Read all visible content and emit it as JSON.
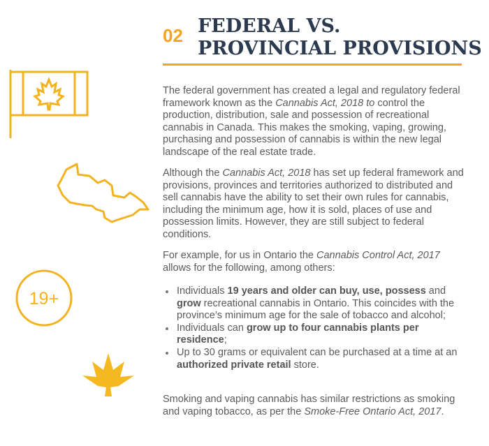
{
  "header": {
    "number": "02",
    "title_line1": "FEDERAL VS.",
    "title_line2": "PROVINCIAL PROVISIONS"
  },
  "icon_label": "19+",
  "paragraphs": [
    [
      {
        "text": "The federal government has created a legal and regulatory federal framework known as the "
      },
      {
        "italic": "Cannabis Act, 2018 to"
      },
      {
        "text": " control the production, distribution, sale and possession of recreational cannabis in Canada. This makes the smoking, vaping, growing, purchasing and possession of cannabis is within the new legal landscape of the real estate trade."
      }
    ],
    [
      {
        "text": "Although the "
      },
      {
        "italic": "Cannabis Act, 2018"
      },
      {
        "text": " has set up federal framework and provisions, provinces and territories authorized to distributed and sell cannabis have the ability to set their own rules for cannabis, including the minimum age, how it is sold, places of use and possession limits. However, they are still subject to federal conditions."
      }
    ],
    [
      {
        "text": "For example, for us in Ontario the "
      },
      {
        "italic": "Cannabis Control Act, 2017"
      },
      {
        "text": " allows for the following, among others:"
      }
    ]
  ],
  "bullets": [
    [
      {
        "text": "Individuals "
      },
      {
        "bold": "19 years and older can buy, use, possess"
      },
      {
        "text": " and "
      },
      {
        "bold": "grow"
      },
      {
        "text": " recreational cannabis in Ontario. This coincides with the province’s minimum age for the sale of tobacco and alcohol;"
      }
    ],
    [
      {
        "text": "Individuals can "
      },
      {
        "bold": "grow up to four cannabis plants per residence"
      },
      {
        "text": ";"
      }
    ],
    [
      {
        "text": "Up to 30 grams or equivalent can be purchased at a time at an "
      },
      {
        "bold": "authorized private retail"
      },
      {
        "text": " store."
      }
    ]
  ],
  "closing": [
    {
      "text": "Smoking and vaping cannabis has similar restrictions as smoking and vaping tobacco, as per the "
    },
    {
      "italic": "Smoke-Free Ontario Act, 2017"
    },
    {
      "text": "."
    }
  ]
}
